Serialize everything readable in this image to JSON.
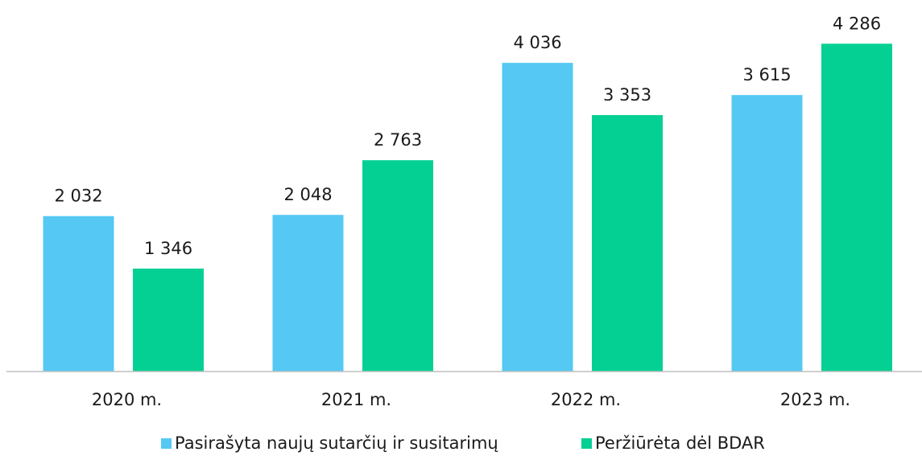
{
  "chart_data": {
    "type": "bar",
    "categories": [
      "2020 m.",
      "2021 m.",
      "2022 m.",
      "2023 m."
    ],
    "series": [
      {
        "name": "Pasirašyta naujų sutarčių ir susitarimų",
        "color": "#55c9f3",
        "values": [
          2032,
          2048,
          4036,
          3615
        ],
        "value_labels": [
          "2 032",
          "2 048",
          "4 036",
          "3 615"
        ]
      },
      {
        "name": "Peržiūrėta dėl BDAR",
        "color": "#05d093",
        "values": [
          1346,
          2763,
          3353,
          4286
        ],
        "value_labels": [
          "1 346",
          "2 763",
          "3 353",
          "4 286"
        ]
      }
    ],
    "ylim": [
      0,
      4500
    ],
    "legend": "bottom"
  }
}
